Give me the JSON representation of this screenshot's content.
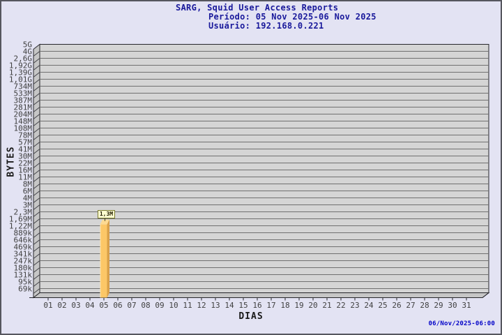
{
  "header": {
    "title": "SARG, Squid User Access Reports",
    "period": "Período: 05 Nov 2025-06 Nov 2025",
    "user": "Usuário: 192.168.0.221"
  },
  "footer": {
    "generated": "06/Nov/2025-06:00"
  },
  "colors": {
    "background": "#e3e3f3",
    "frame_border": "#55565e",
    "plot_face": "#d5d5d5",
    "plot_wall": "#c6c6c6",
    "gridline": "#707070",
    "axis_line": "#26262b",
    "tick_text": "#404040",
    "title_text": "#19199b",
    "timestamp_text": "#0404c8",
    "bar_front": "#fcc767",
    "bar_top": "#fdda92",
    "bar_side": "#d9a04a",
    "bar_label_bg": "#ffffd0"
  },
  "chart_data": {
    "type": "bar",
    "title": "SARG, Squid User Access Reports",
    "subtitle_period": "Período: 05 Nov 2025-06 Nov 2025",
    "subtitle_user": "Usuário: 192.168.0.221",
    "xlabel": "DIAS",
    "ylabel": "BYTES",
    "y_scale": "log",
    "y_top_value_bytes": 5000000000,
    "y_bottom_value_bytes": 69000,
    "y_tick_labels": [
      "5G",
      "4G",
      "2,6G",
      "1,92G",
      "1,39G",
      "1,01G",
      "734M",
      "533M",
      "387M",
      "281M",
      "204M",
      "148M",
      "108M",
      "78M",
      "57M",
      "41M",
      "30M",
      "22M",
      "16M",
      "11M",
      "8M",
      "6M",
      "4M",
      "3M",
      "2,3M",
      "1,69M",
      "1,22M",
      "889k",
      "646k",
      "469k",
      "341k",
      "247k",
      "180k",
      "131k",
      "95k",
      "69k"
    ],
    "x_tick_labels": [
      "01",
      "02",
      "03",
      "04",
      "05",
      "06",
      "07",
      "08",
      "09",
      "10",
      "11",
      "12",
      "13",
      "14",
      "15",
      "16",
      "17",
      "18",
      "19",
      "20",
      "21",
      "22",
      "23",
      "24",
      "25",
      "26",
      "27",
      "28",
      "29",
      "30",
      "31"
    ],
    "grid": true,
    "legend": "none",
    "bars": [
      {
        "x": "05",
        "label": "1,3M",
        "value_bytes": 1300000
      }
    ],
    "footer_timestamp": "06/Nov/2025-06:00"
  }
}
